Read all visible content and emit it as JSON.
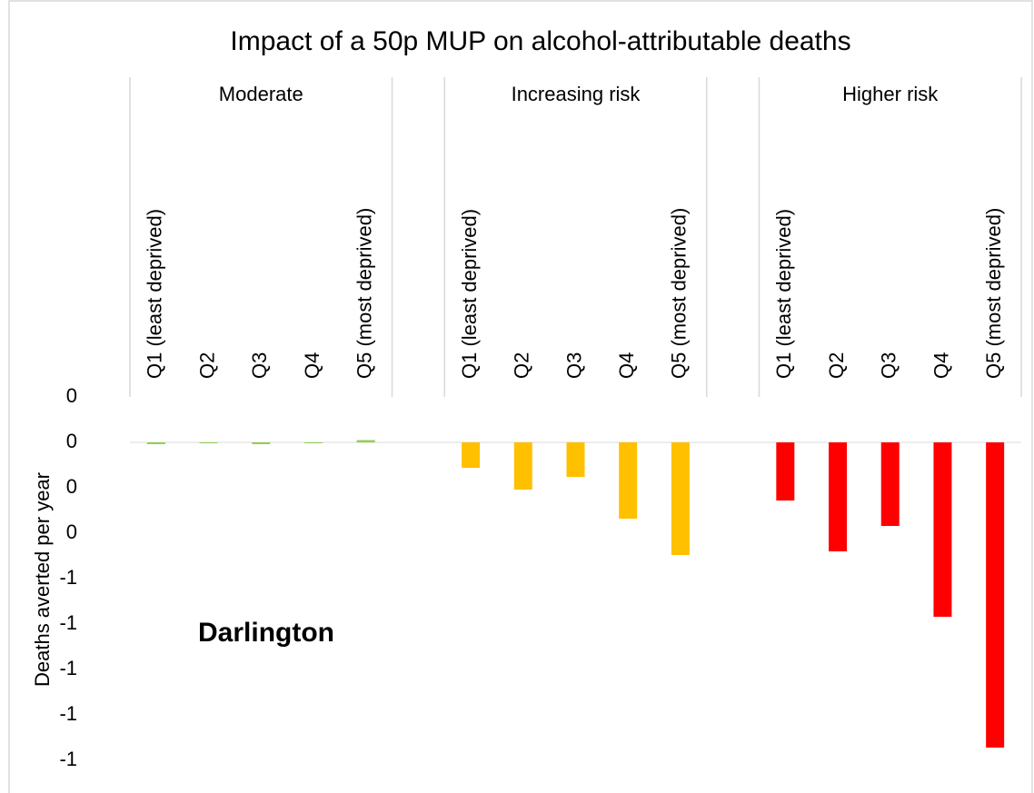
{
  "chart_data": {
    "type": "bar",
    "title": "Impact of a 50p MUP on alcohol-attributable  deaths",
    "y_label": "Deaths averted per year",
    "annotation": "Darlington",
    "categories": [
      "Q1  (least deprived)",
      "Q2",
      "Q3",
      "Q4",
      "Q5 (most deprived)",
      null,
      "Q1  (least deprived)",
      "Q2",
      "Q3",
      "Q4",
      "Q5 (most deprived)",
      null,
      "Q1  (least deprived)",
      "Q2",
      "Q3",
      "Q4",
      "Q5 (most deprived)"
    ],
    "series": [
      {
        "name": "Moderate",
        "color": "#92d050",
        "values": [
          -0.008,
          -0.002,
          -0.008,
          -0.002,
          0.01,
          null,
          null,
          null,
          null,
          null,
          null,
          null,
          null,
          null,
          null,
          null,
          null
        ]
      },
      {
        "name": "Increasing risk",
        "color": "#ffc000",
        "values": [
          null,
          null,
          null,
          null,
          null,
          null,
          -0.112,
          -0.208,
          -0.152,
          -0.336,
          -0.496,
          null,
          null,
          null,
          null,
          null,
          null
        ]
      },
      {
        "name": "Higher risk",
        "color": "#ff0000",
        "values": [
          null,
          null,
          null,
          null,
          null,
          null,
          null,
          null,
          null,
          null,
          null,
          null,
          -0.256,
          -0.48,
          -0.368,
          -0.768,
          -1.344
        ]
      }
    ],
    "ylim": [
      -1.4,
      0.2
    ],
    "yticks": [
      {
        "value": 0.2,
        "label": "0"
      },
      {
        "value": 0,
        "label": "0"
      },
      {
        "value": -0.2,
        "label": "0"
      },
      {
        "value": -0.4,
        "label": "0"
      },
      {
        "value": -0.6,
        "label": "-1"
      },
      {
        "value": -0.8,
        "label": "-1"
      },
      {
        "value": -1.0,
        "label": "-1"
      },
      {
        "value": -1.2,
        "label": "-1"
      },
      {
        "value": -1.4,
        "label": "-1"
      }
    ]
  }
}
